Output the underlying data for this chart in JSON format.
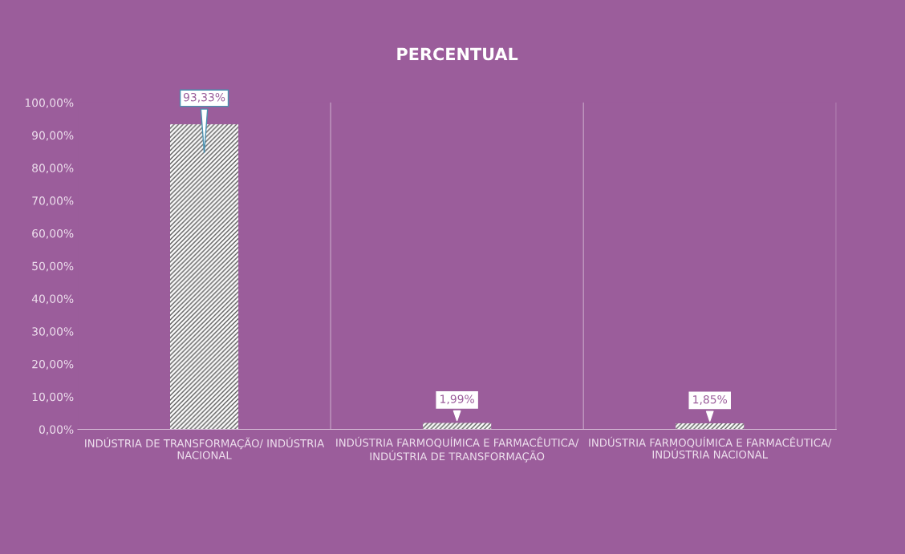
{
  "chart_data": {
    "type": "bar",
    "title": "PERCENTUAL",
    "categories": [
      "INDÚSTRIA DE TRANSFORMAÇÃO/ INDÚSTRIA NACIONAL",
      "INDÚSTRIA FARMOQUÍMICA E FARMACÊUTICA/ INDÚSTRIA DE TRANSFORMAÇÃO",
      "INDÚSTRIA FARMOQUÍMICA E FARMACÊUTICA/ INDÚSTRIA NACIONAL"
    ],
    "values": [
      93.33,
      1.99,
      1.85
    ],
    "value_labels": [
      "93,33%",
      "1,99%",
      "1,85%"
    ],
    "color": "#ffffff",
    "ylim": [
      0,
      100
    ],
    "yticks": [
      {
        "value": 0,
        "label": "0,00%"
      },
      {
        "value": 10,
        "label": "10,00%"
      },
      {
        "value": 20,
        "label": "20,00%"
      },
      {
        "value": 30,
        "label": "30,00%"
      },
      {
        "value": 40,
        "label": "40,00%"
      },
      {
        "value": 50,
        "label": "50,00%"
      },
      {
        "value": 60,
        "label": "60,00%"
      },
      {
        "value": 70,
        "label": "70,00%"
      },
      {
        "value": 80,
        "label": "80,00%"
      },
      {
        "value": 90,
        "label": "90,00%"
      },
      {
        "value": 100,
        "label": "100,00%"
      }
    ],
    "grid": "x"
  }
}
